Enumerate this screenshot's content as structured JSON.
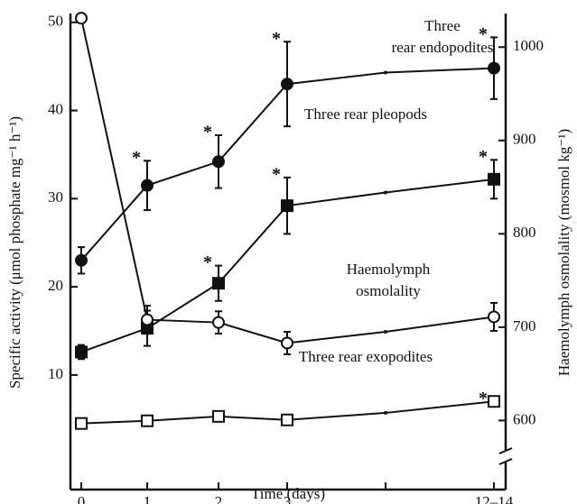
{
  "chart_data": {
    "type": "line",
    "xlabel": "Time (days)",
    "ylabel": "Specific activity (μmol phosphate mg⁻¹ h⁻¹)",
    "y2label": "Haemolymph osmolality (mosmol kg⁻¹)",
    "categories": [
      "0",
      "1",
      "2",
      "3",
      null,
      "12–14"
    ],
    "ylim": [
      -3,
      51
    ],
    "yticks": [
      10,
      20,
      30,
      40,
      50
    ],
    "y2lim": [
      526,
      1036
    ],
    "y2ticks": [
      600,
      700,
      800,
      900,
      1000
    ],
    "series": [
      {
        "label": [
          "Three",
          "rear endopodites"
        ],
        "marker": "circle",
        "filled": true,
        "color": "#111",
        "values": [
          23.0,
          31.5,
          34.2,
          43.0,
          44.3,
          44.8
        ],
        "errors": [
          1.5,
          2.8,
          3.0,
          4.8,
          null,
          3.5
        ],
        "stars": [
          null,
          "*",
          "*",
          "*",
          null,
          "*"
        ]
      },
      {
        "label": [
          "Three rear pleopods"
        ],
        "marker": "square",
        "filled": true,
        "color": "#111",
        "values": [
          12.6,
          15.3,
          20.4,
          29.2,
          30.7,
          32.2
        ],
        "errors": [
          0.8,
          2.0,
          2.0,
          3.2,
          null,
          2.2
        ],
        "stars": [
          null,
          null,
          "*",
          "*",
          null,
          "*"
        ]
      },
      {
        "label": [
          "Haemolymph",
          "osmolality"
        ],
        "marker": "circle",
        "filled": false,
        "color": "#111",
        "axis": "y2",
        "values": [
          1031,
          708,
          705,
          683,
          695,
          711
        ],
        "errors": [
          null,
          15,
          12,
          12,
          null,
          15
        ],
        "stars": [
          null,
          null,
          null,
          null,
          null,
          null
        ]
      },
      {
        "label": [
          "Three rear exopodites"
        ],
        "marker": "square",
        "filled": false,
        "color": "#111",
        "values": [
          4.5,
          4.8,
          5.3,
          4.9,
          5.7,
          7.0
        ],
        "errors": [
          null,
          null,
          null,
          null,
          null,
          null
        ],
        "stars": [
          null,
          null,
          null,
          null,
          null,
          "*"
        ]
      }
    ]
  }
}
